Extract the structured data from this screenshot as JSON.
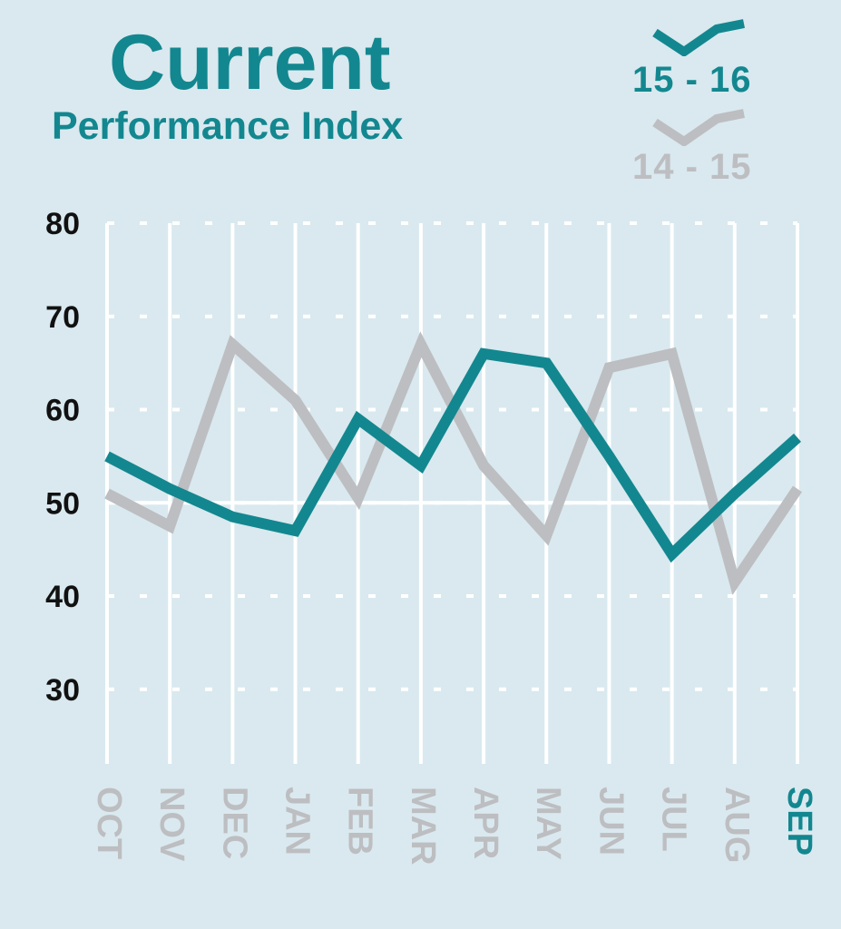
{
  "header": {
    "title": "Current",
    "subtitle": "Performance Index"
  },
  "legend": {
    "current_label": "15 - 16",
    "previous_label": "14 - 15"
  },
  "colors": {
    "background": "#d9e9ef",
    "accent": "#13878f",
    "previous": "#bdbec1",
    "grid": "#ffffff",
    "tick_text": "#111111",
    "highlight_month": "#13878f"
  },
  "chart_data": {
    "type": "line",
    "title": "Current",
    "subtitle": "Performance Index",
    "xlabel": "",
    "ylabel": "",
    "categories": [
      "OCT",
      "NOV",
      "DEC",
      "JAN",
      "FEB",
      "MAR",
      "APR",
      "MAY",
      "JUN",
      "JUL",
      "AUG",
      "SEP"
    ],
    "highlight_category": "SEP",
    "yticks": [
      30,
      40,
      50,
      60,
      70,
      80
    ],
    "ylim": [
      22,
      80
    ],
    "series": [
      {
        "name": "15 - 16",
        "values": [
          55,
          51.5,
          48.5,
          47,
          59,
          54,
          66,
          65,
          55,
          44.5,
          51,
          57
        ],
        "color": "#13878f"
      },
      {
        "name": "14 - 15",
        "values": [
          51,
          47.5,
          67,
          61,
          50.5,
          67,
          54,
          46.5,
          64.5,
          66,
          41.5,
          51.5
        ],
        "color": "#bdbec1"
      }
    ],
    "grid": true,
    "reference_line": 50,
    "legend_position": "top-right"
  }
}
